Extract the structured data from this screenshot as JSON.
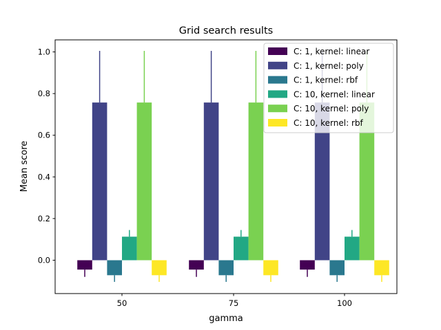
{
  "chart_data": {
    "type": "bar",
    "title": "Grid search results",
    "xlabel": "gamma",
    "ylabel": "Mean score",
    "categories": [
      "50",
      "75",
      "100"
    ],
    "ylim": [
      -0.15,
      1.06
    ],
    "yticks": [
      0.0,
      0.2,
      0.4,
      0.6,
      0.8,
      1.0
    ],
    "ytick_labels": [
      "0.0",
      "0.2",
      "0.4",
      "0.6",
      "0.8",
      "1.0"
    ],
    "grid": false,
    "legend_position": "top-right",
    "series": [
      {
        "name": "C: 1, kernel: linear",
        "color": "#440154",
        "values": [
          -0.045,
          -0.045,
          -0.045
        ],
        "errors": [
          0.035,
          0.035,
          0.035
        ]
      },
      {
        "name": "C: 1, kernel: poly",
        "color": "#414487",
        "values": [
          0.757,
          0.757,
          0.757
        ],
        "errors": [
          0.248,
          0.248,
          0.248
        ]
      },
      {
        "name": "C: 1, kernel: rbf",
        "color": "#2a788e",
        "values": [
          -0.072,
          -0.072,
          -0.072
        ],
        "errors": [
          0.032,
          0.032,
          0.032
        ]
      },
      {
        "name": "C: 10, kernel: linear",
        "color": "#22a884",
        "values": [
          0.113,
          0.113,
          0.113
        ],
        "errors": [
          0.032,
          0.032,
          0.032
        ]
      },
      {
        "name": "C: 10, kernel: poly",
        "color": "#7ad151",
        "values": [
          0.757,
          0.757,
          0.757
        ],
        "errors": [
          0.248,
          0.248,
          0.248
        ]
      },
      {
        "name": "C: 10, kernel: rbf",
        "color": "#fde725",
        "values": [
          -0.072,
          -0.072,
          -0.072
        ],
        "errors": [
          0.032,
          0.032,
          0.032
        ]
      }
    ]
  }
}
